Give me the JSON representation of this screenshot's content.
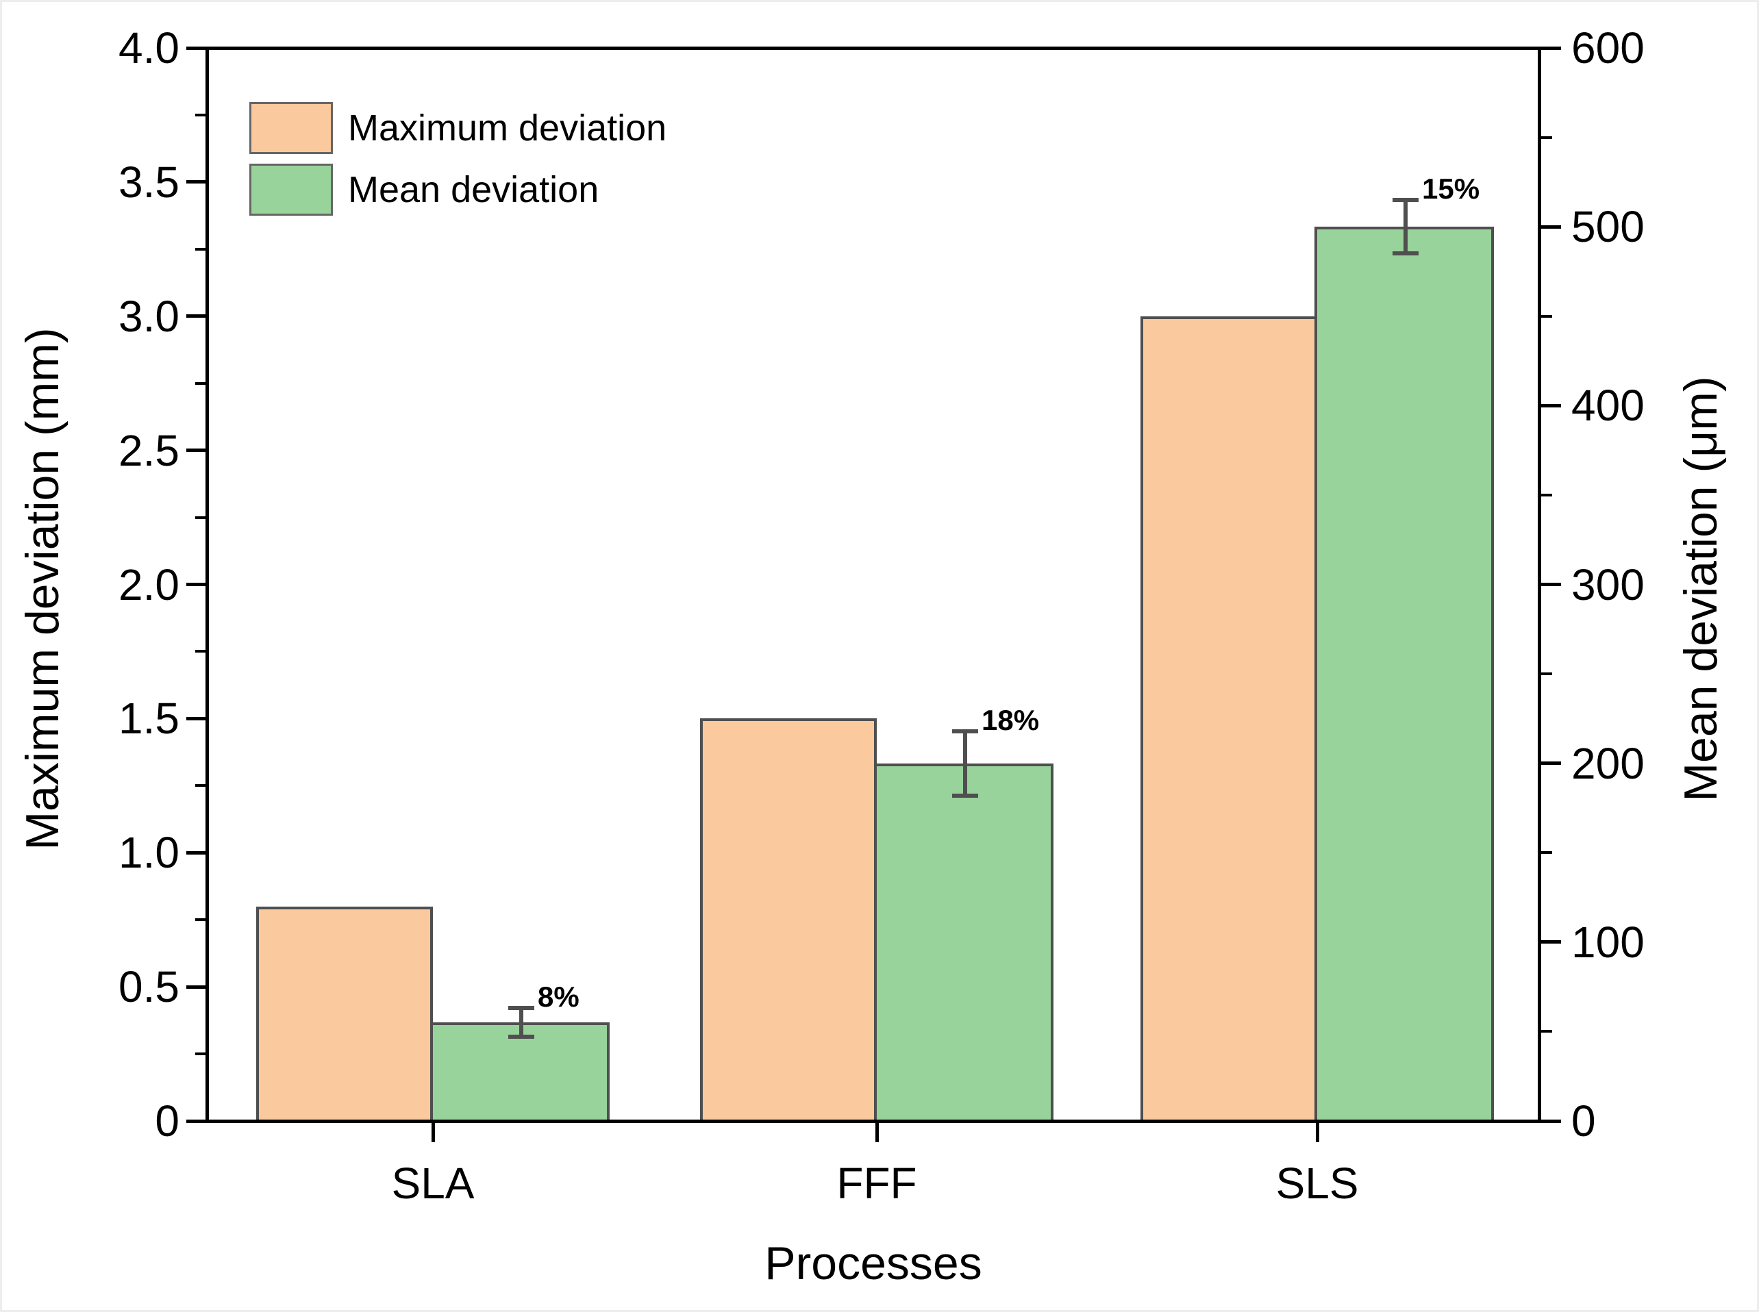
{
  "figure": {
    "x_axis_title": "Processes",
    "y_axis_title_left": "Maximum deviation (mm)",
    "y_axis_title_right": "Mean deviation (μm)"
  },
  "legend": {
    "position": "top-left",
    "items": [
      {
        "label": "Maximum deviation",
        "color": "#FACA9E"
      },
      {
        "label": "Mean deviation",
        "color": "#99D39C"
      }
    ]
  },
  "chart_data": {
    "type": "bar",
    "categories": [
      "SLA",
      "FFF",
      "SLS"
    ],
    "series": [
      {
        "name": "Maximum deviation",
        "axis": "left",
        "unit": "mm",
        "color": "#FACA9E",
        "values": [
          0.8,
          1.5,
          3.0
        ]
      },
      {
        "name": "Mean deviation",
        "axis": "right",
        "unit": "μm",
        "color": "#99D39C",
        "values": [
          55,
          200,
          500
        ],
        "errors": [
          8,
          18,
          15
        ],
        "error_labels": [
          "8%",
          "18%",
          "15%"
        ]
      }
    ],
    "title": "",
    "xlabel": "Processes",
    "ylabel_left": "Maximum deviation (mm)",
    "ylabel_right": "Mean deviation (μm)",
    "ylim_left": [
      0,
      4
    ],
    "ylim_right": [
      0,
      600
    ],
    "yticks_left": {
      "values": [
        0,
        0.5,
        1.0,
        1.5,
        2.0,
        2.5,
        3.0,
        3.5,
        4.0
      ],
      "labels": [
        "0",
        "0.5",
        "1.0",
        "1.5",
        "2.0",
        "2.5",
        "3.0",
        "3.5",
        "4.0"
      ],
      "minor_step": 0.25
    },
    "yticks_right": {
      "values": [
        0,
        100,
        200,
        300,
        400,
        500,
        600
      ],
      "labels": [
        "0",
        "100",
        "200",
        "300",
        "400",
        "500",
        "600"
      ],
      "minor_step": 50
    },
    "grid": false,
    "legend_position": "top-left",
    "bar_outline_color": "#4F4F4F",
    "errorbar_color": "#4F4F4F",
    "axis_color": "#000000"
  }
}
